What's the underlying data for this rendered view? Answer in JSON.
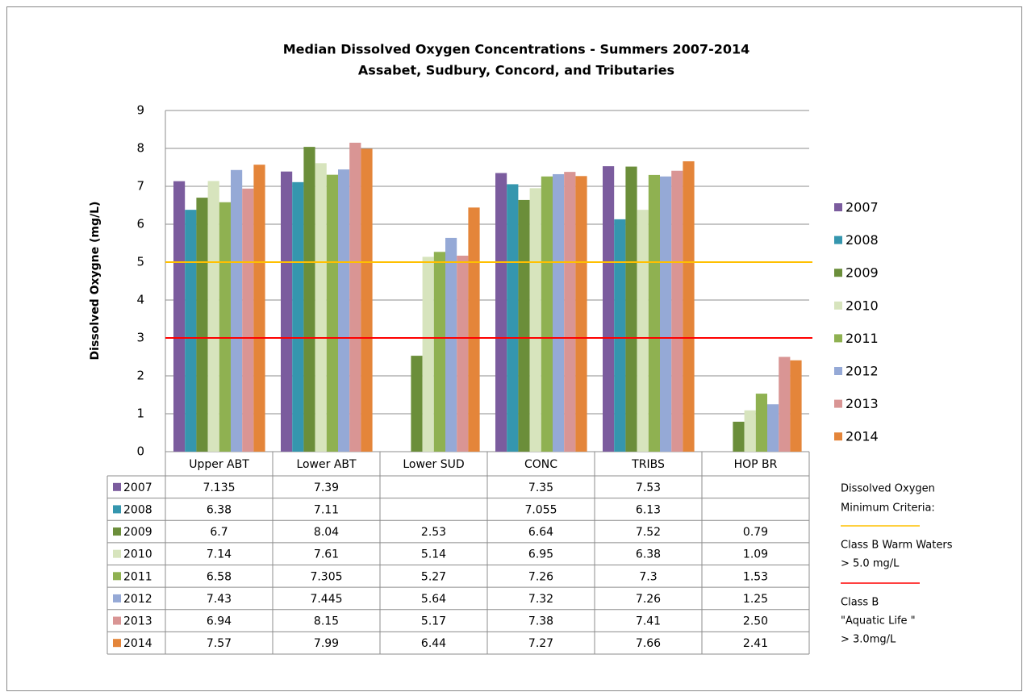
{
  "chart_data": {
    "type": "bar",
    "title": "Median Dissolved Oxygen Concentrations - Summers 2007-2014",
    "subtitle": "Assabet, Sudbury, Concord, and Tributaries",
    "y_label": "Dissolved Oxygne (mg/L)",
    "categories": [
      "Upper ABT",
      "Lower ABT",
      "Lower SUD",
      "CONC",
      "TRIBS",
      "HOP BR"
    ],
    "series": [
      {
        "name": "2007",
        "color": "#7b5c9e",
        "values": [
          7.135,
          7.39,
          null,
          7.35,
          7.53,
          null
        ]
      },
      {
        "name": "2008",
        "color": "#3596ae",
        "values": [
          6.38,
          7.11,
          null,
          7.055,
          6.13,
          null
        ]
      },
      {
        "name": "2009",
        "color": "#6b8e3a",
        "values": [
          6.7,
          8.04,
          2.53,
          6.64,
          7.52,
          0.79
        ]
      },
      {
        "name": "2010",
        "color": "#d7e4bd",
        "values": [
          7.14,
          7.61,
          5.14,
          6.95,
          6.38,
          1.09
        ]
      },
      {
        "name": "2011",
        "color": "#8fb151",
        "values": [
          6.58,
          7.305,
          5.27,
          7.26,
          7.3,
          1.53
        ]
      },
      {
        "name": "2012",
        "color": "#95a9d6",
        "values": [
          7.43,
          7.445,
          5.64,
          7.32,
          7.26,
          1.25
        ]
      },
      {
        "name": "2013",
        "color": "#d99594",
        "values": [
          6.94,
          8.15,
          5.17,
          7.38,
          7.41,
          2.5
        ],
        "value_labels": [
          "6.94",
          "8.15",
          "5.17",
          "7.38",
          "7.41",
          "2.50"
        ]
      },
      {
        "name": "2014",
        "color": "#e4853a",
        "values": [
          7.57,
          7.99,
          6.44,
          7.27,
          7.66,
          2.41
        ]
      }
    ],
    "ylim": [
      0,
      9
    ],
    "yticks": [
      0,
      1,
      2,
      3,
      4,
      5,
      6,
      7,
      8,
      9
    ],
    "grid": true,
    "reference_lines": [
      {
        "value": 5,
        "color": "#ffc000",
        "label": [
          "Class B  Warm Waters",
          "> 5.0 mg/L"
        ]
      },
      {
        "value": 3,
        "color": "#ff0000",
        "label": [
          "Class B",
          "\"Aquatic Life \"",
          "> 3.0mg/L"
        ]
      }
    ],
    "criteria_title": [
      "Dissolved Oxygen",
      "Minimum Criteria:"
    ]
  }
}
